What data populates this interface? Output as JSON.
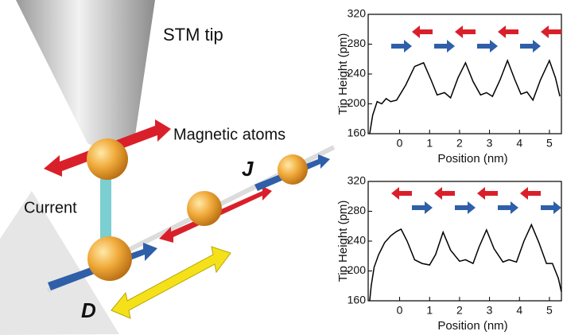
{
  "illustration": {
    "tip_label": "STM tip",
    "atoms_label": "Magnetic atoms",
    "current_label": "Current",
    "j_label": "J",
    "d_label": "D"
  },
  "chart_data": [
    {
      "type": "line",
      "xlabel": "Position (nm)",
      "ylabel": "Tip Height (pm)",
      "x": [
        -1.0,
        -0.9,
        -0.75,
        -0.6,
        -0.45,
        -0.3,
        -0.1,
        0.2,
        0.5,
        0.8,
        1.05,
        1.25,
        1.5,
        1.7,
        1.95,
        2.2,
        2.45,
        2.7,
        2.9,
        3.1,
        3.35,
        3.6,
        3.85,
        4.05,
        4.25,
        4.45,
        4.7,
        5.0,
        5.2,
        5.35
      ],
      "values": [
        160,
        185,
        203,
        200,
        207,
        203,
        205,
        225,
        250,
        255,
        232,
        212,
        215,
        208,
        235,
        255,
        230,
        212,
        215,
        210,
        232,
        258,
        232,
        213,
        216,
        205,
        232,
        258,
        235,
        210
      ],
      "color": "#000000",
      "xlim": [
        -1.05,
        5.4
      ],
      "ylim": [
        160,
        320
      ],
      "xticks": [
        0,
        1,
        2,
        3,
        4,
        5
      ],
      "yticks": [
        160,
        200,
        240,
        280,
        320
      ]
    },
    {
      "type": "line",
      "xlabel": "Position (nm)",
      "ylabel": "Tip Height (pm)",
      "x": [
        -1.0,
        -0.95,
        -0.85,
        -0.7,
        -0.5,
        -0.3,
        -0.1,
        0.05,
        0.25,
        0.5,
        0.75,
        1.0,
        1.2,
        1.45,
        1.7,
        2.0,
        2.2,
        2.45,
        2.65,
        2.9,
        3.15,
        3.45,
        3.65,
        3.9,
        4.15,
        4.4,
        4.65,
        4.9,
        5.1,
        5.3,
        5.4
      ],
      "values": [
        160,
        180,
        205,
        222,
        238,
        247,
        253,
        256,
        240,
        215,
        210,
        208,
        222,
        252,
        228,
        213,
        215,
        210,
        232,
        255,
        230,
        212,
        215,
        212,
        240,
        262,
        238,
        210,
        210,
        190,
        172
      ],
      "color": "#000000",
      "xlim": [
        -1.05,
        5.4
      ],
      "ylim": [
        160,
        320
      ],
      "xticks": [
        0,
        1,
        2,
        3,
        4,
        5
      ],
      "yticks": [
        160,
        200,
        240,
        280,
        320
      ]
    }
  ]
}
